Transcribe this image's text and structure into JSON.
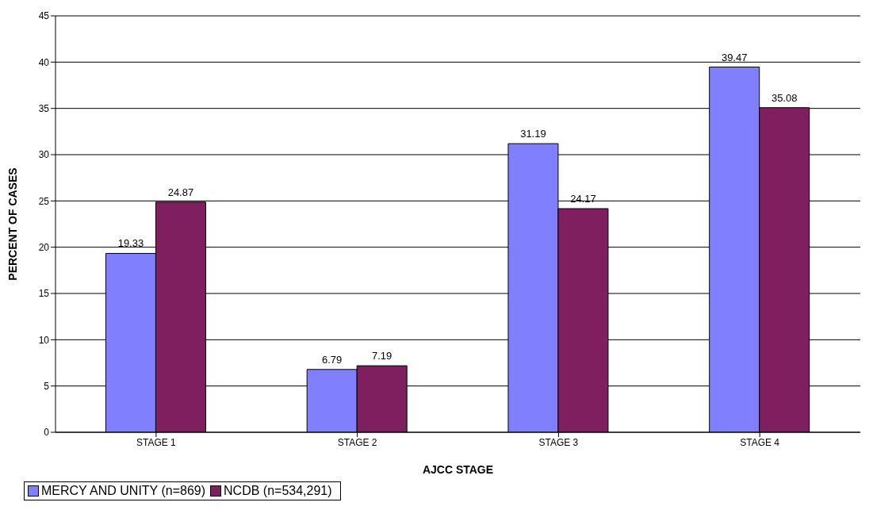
{
  "chart_data": {
    "type": "bar",
    "xlabel": "AJCC STAGE",
    "ylabel": "PERCENT OF CASES",
    "categories": [
      "STAGE 1",
      "STAGE 2",
      "STAGE 3",
      "STAGE 4"
    ],
    "series": [
      {
        "name": "MERCY AND UNITY (n=869)",
        "color": "#8080ff",
        "values": [
          19.33,
          6.79,
          31.19,
          39.47
        ]
      },
      {
        "name": "NCDB (n=534,291)",
        "color": "#7f1f5f",
        "values": [
          24.87,
          7.19,
          24.17,
          35.08
        ]
      }
    ],
    "ylim": [
      0,
      45
    ],
    "yticks": [
      0,
      5,
      10,
      15,
      20,
      25,
      30,
      35,
      40,
      45
    ],
    "grid": "y",
    "legend": "bottom",
    "data_labels": true
  }
}
